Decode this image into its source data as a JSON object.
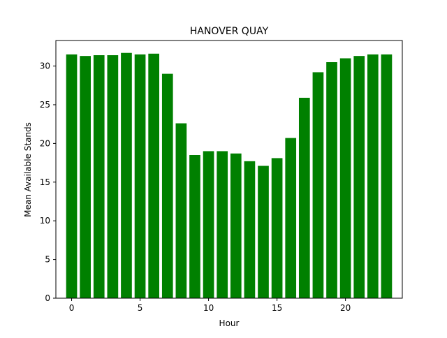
{
  "chart_data": {
    "type": "bar",
    "title": "HANOVER QUAY",
    "xlabel": "Hour",
    "ylabel": "Mean Available Stands",
    "categories": [
      0,
      1,
      2,
      3,
      4,
      5,
      6,
      7,
      8,
      9,
      10,
      11,
      12,
      13,
      14,
      15,
      16,
      17,
      18,
      19,
      20,
      21,
      22,
      23
    ],
    "values": [
      31.5,
      31.3,
      31.4,
      31.4,
      31.7,
      31.5,
      31.6,
      29.0,
      22.6,
      18.5,
      19.0,
      19.0,
      18.7,
      17.7,
      17.1,
      18.1,
      20.7,
      25.9,
      29.2,
      30.5,
      31.0,
      31.3,
      31.5,
      31.5
    ],
    "xlim": [
      -1.15,
      24.15
    ],
    "ylim": [
      0,
      33.3
    ],
    "xticks": [
      0,
      5,
      10,
      15,
      20
    ],
    "yticks": [
      0,
      5,
      10,
      15,
      20,
      25,
      30
    ],
    "bar_color": "#008000",
    "grid": false
  }
}
